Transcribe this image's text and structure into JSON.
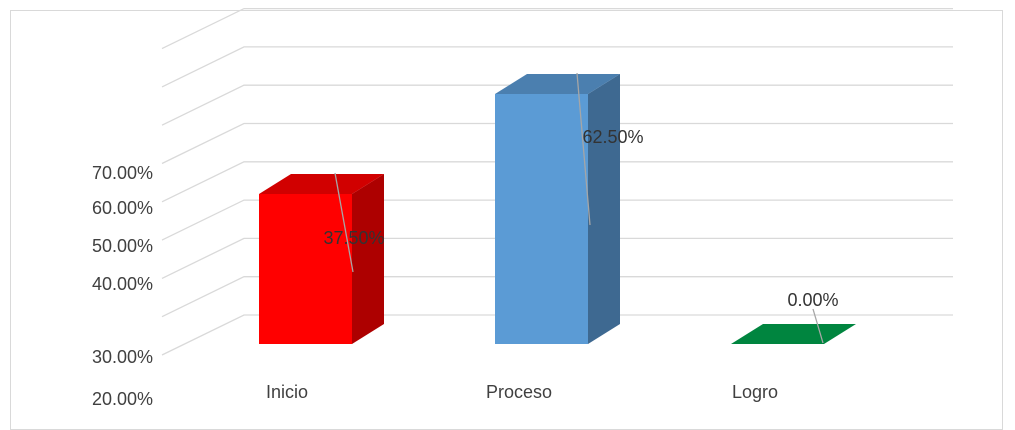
{
  "chart_data": {
    "type": "bar",
    "style": "3d-column",
    "title": "",
    "xlabel": "",
    "ylabel": "",
    "categories": [
      "Inicio",
      "Proceso",
      "Logro"
    ],
    "values": [
      37.5,
      62.5,
      0.0
    ],
    "data_labels": [
      "37.50%",
      "62.50%",
      "0.00%"
    ],
    "bar_colors": [
      "#ff0000",
      "#5b9bd5",
      "#00853f"
    ],
    "y_tick_labels": [
      "70.00%",
      "60.00%",
      "50.00%",
      "40.00%",
      "30.00%",
      "20.00%"
    ],
    "legend": "none",
    "grid": true
  }
}
